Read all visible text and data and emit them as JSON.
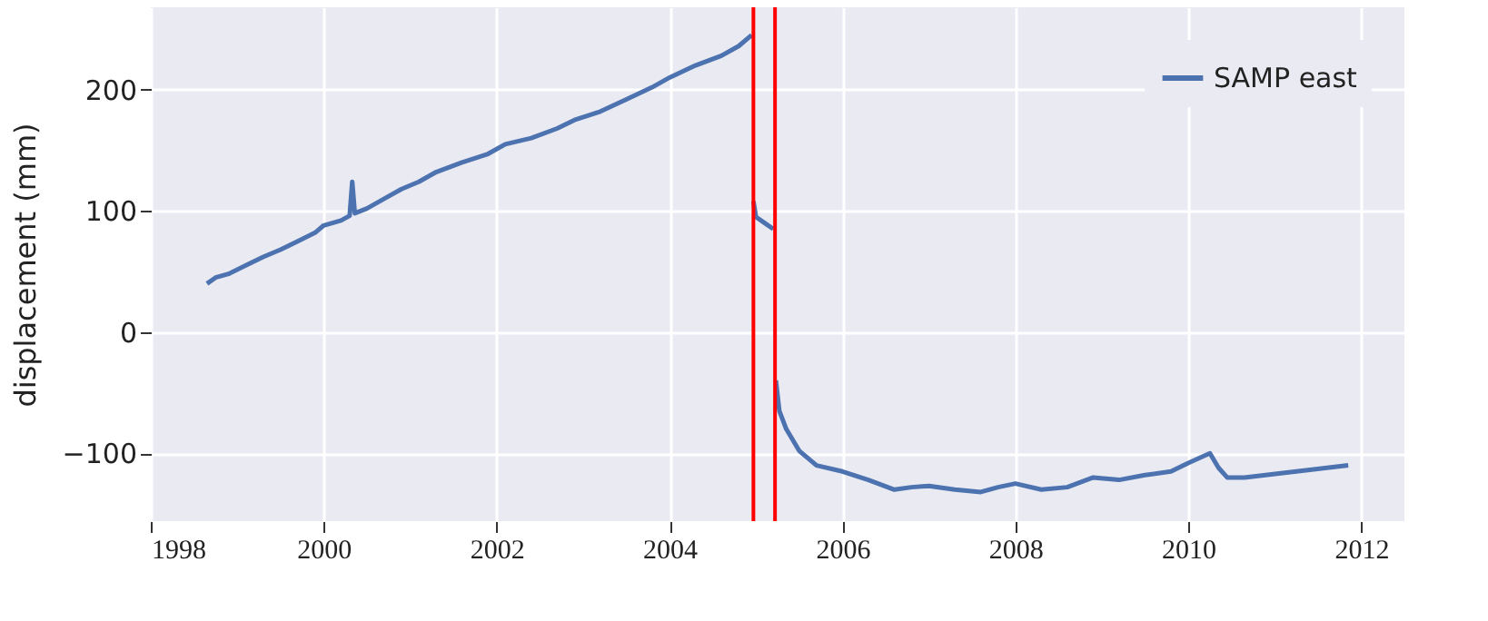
{
  "chart_data": {
    "type": "line",
    "ylabel": "displacement (mm)",
    "x": [
      1998.65,
      1998.75,
      1998.9,
      1999.1,
      1999.3,
      1999.5,
      1999.7,
      1999.9,
      2000.0,
      2000.2,
      2000.3,
      2000.33,
      2000.36,
      2000.5,
      2000.7,
      2000.9,
      2001.1,
      2001.3,
      2001.6,
      2001.9,
      2002.1,
      2002.4,
      2002.7,
      2002.9,
      2003.2,
      2003.5,
      2003.8,
      2004.0,
      2004.3,
      2004.6,
      2004.8,
      2004.95,
      2004.96,
      2004.97,
      2005.0,
      2005.1,
      2005.2,
      2005.21,
      2005.23,
      2005.27,
      2005.35,
      2005.5,
      2005.7,
      2006.0,
      2006.3,
      2006.6,
      2006.8,
      2007.0,
      2007.3,
      2007.6,
      2007.8,
      2008.0,
      2008.3,
      2008.6,
      2008.9,
      2009.2,
      2009.5,
      2009.8,
      2010.0,
      2010.25,
      2010.35,
      2010.45,
      2010.65,
      2011.85
    ],
    "series": [
      {
        "name": "SAMP east",
        "color": "#4c72b0",
        "values": [
          40,
          45,
          48,
          55,
          62,
          68,
          75,
          82,
          88,
          92,
          96,
          124,
          98,
          102,
          110,
          118,
          124,
          132,
          140,
          147,
          155,
          160,
          168,
          175,
          182,
          192,
          202,
          210,
          220,
          228,
          236,
          245,
          null,
          108,
          95,
          90,
          85,
          null,
          -40,
          -65,
          -80,
          -98,
          -110,
          -115,
          -122,
          -130,
          -128,
          -127,
          -130,
          -132,
          -128,
          -125,
          -130,
          -128,
          -120,
          -122,
          -118,
          -115,
          -108,
          -100,
          -112,
          -120,
          -120,
          -110
        ]
      }
    ],
    "xlim": [
      1998,
      2012.5
    ],
    "ylim": [
      -156,
      268
    ],
    "xticks": [
      1998,
      2000,
      2002,
      2004,
      2006,
      2008,
      2010,
      2012
    ],
    "yticks": [
      -100,
      0,
      100,
      200
    ],
    "ref_lines": [
      {
        "axis": "x",
        "value": 2004.97,
        "color": "#ff0000"
      },
      {
        "axis": "x",
        "value": 2005.22,
        "color": "#ff0000"
      }
    ],
    "grid": true,
    "legend": "top right",
    "line_style": "solid",
    "marker": "none"
  }
}
